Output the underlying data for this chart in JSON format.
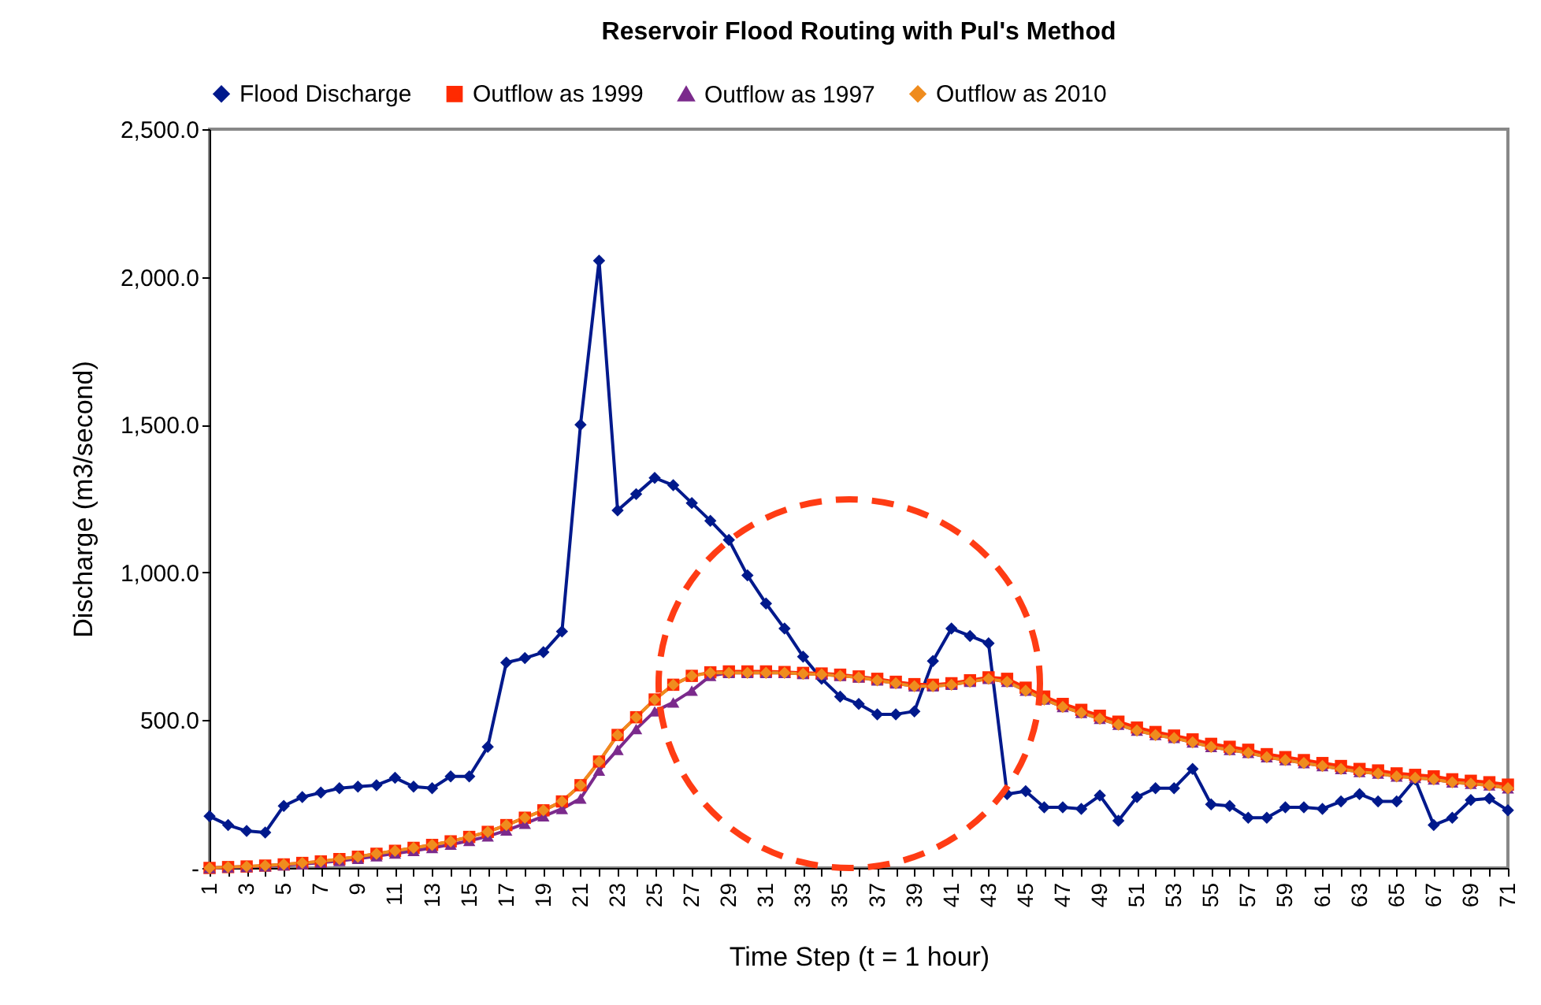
{
  "chart_data": {
    "type": "line",
    "title": "Reservoir Flood Routing with Pul's Method",
    "xlabel": "Time Step (t = 1 hour)",
    "ylabel": "Discharge (m3/second)",
    "categories": [
      "1",
      null,
      "3",
      null,
      "5",
      null,
      "7",
      null,
      "9",
      null,
      "11",
      null,
      "13",
      null,
      "15",
      null,
      "17",
      null,
      "19",
      null,
      "21",
      null,
      "23",
      null,
      "25",
      null,
      "27",
      null,
      "29",
      null,
      "31",
      null,
      "33",
      null,
      "35",
      null,
      "37",
      null,
      "39",
      null,
      "41",
      null,
      "43",
      null,
      "45",
      null,
      "47",
      null,
      "49",
      null,
      "51",
      null,
      "53",
      null,
      "55",
      null,
      "57",
      null,
      "59",
      null,
      "61",
      null,
      "63",
      null,
      "65",
      null,
      "67",
      null,
      "69",
      null,
      "71"
    ],
    "ylim": [
      0,
      2500
    ],
    "yticks": [
      {
        "value": 0,
        "label": "-"
      },
      {
        "value": 500,
        "label": "500.0"
      },
      {
        "value": 1000,
        "label": "1,000.0"
      },
      {
        "value": 1500,
        "label": "1,500.0"
      },
      {
        "value": 2000,
        "label": "2,000.0"
      },
      {
        "value": 2500,
        "label": "2,500.0"
      }
    ],
    "grid": false,
    "legend": "top",
    "line_style": "solid",
    "series": [
      {
        "name": "Flood Discharge",
        "color": "#00198c",
        "marker": "diamond",
        "values": [
          175,
          145,
          125,
          120,
          210,
          240,
          255,
          270,
          275,
          280,
          305,
          275,
          270,
          310,
          310,
          410,
          695,
          710,
          730,
          800,
          1500,
          2055,
          1210,
          1265,
          1320,
          1295,
          1235,
          1175,
          1110,
          990,
          895,
          810,
          715,
          640,
          580,
          555,
          520,
          520,
          530,
          700,
          810,
          785,
          760,
          250,
          260,
          205,
          205,
          200,
          245,
          160,
          240,
          270,
          270,
          335,
          215,
          210,
          170,
          170,
          205,
          205,
          200,
          225,
          250,
          225,
          225,
          300,
          145,
          170,
          230,
          235,
          195
        ]
      },
      {
        "name": "Outflow as 1999",
        "color": "#ff2a00",
        "marker": "square",
        "values": [
          0,
          3,
          5,
          8,
          12,
          17,
          22,
          30,
          38,
          48,
          58,
          68,
          78,
          90,
          105,
          122,
          145,
          170,
          195,
          225,
          280,
          360,
          450,
          510,
          570,
          620,
          650,
          662,
          665,
          665,
          665,
          663,
          660,
          658,
          654,
          648,
          640,
          630,
          622,
          620,
          625,
          635,
          645,
          640,
          610,
          580,
          555,
          535,
          515,
          495,
          475,
          460,
          448,
          435,
          420,
          410,
          400,
          385,
          375,
          365,
          355,
          345,
          335,
          330,
          320,
          315,
          310,
          300,
          295,
          290,
          282
        ]
      },
      {
        "name": "Outflow as 1997",
        "color": "#7b2a8c",
        "marker": "triangle",
        "values": [
          0,
          2,
          4,
          6,
          9,
          13,
          18,
          24,
          31,
          40,
          49,
          58,
          68,
          79,
          92,
          107,
          127,
          150,
          175,
          200,
          235,
          330,
          400,
          470,
          530,
          560,
          600,
          650,
          660,
          660,
          660,
          660,
          657,
          655,
          650,
          645,
          635,
          625,
          615,
          615,
          620,
          630,
          640,
          630,
          600,
          570,
          545,
          525,
          505,
          485,
          465,
          450,
          440,
          425,
          410,
          400,
          390,
          375,
          365,
          355,
          345,
          335,
          325,
          320,
          310,
          305,
          300,
          290,
          285,
          280,
          270
        ]
      },
      {
        "name": "Outflow as 2010",
        "color": "#ef8c1e",
        "marker": "diamond",
        "values": [
          0,
          3,
          5,
          8,
          12,
          17,
          22,
          30,
          38,
          48,
          58,
          68,
          78,
          90,
          105,
          122,
          145,
          170,
          195,
          225,
          280,
          360,
          450,
          510,
          570,
          620,
          650,
          660,
          660,
          660,
          660,
          660,
          657,
          655,
          650,
          645,
          635,
          625,
          615,
          615,
          620,
          630,
          640,
          630,
          600,
          570,
          545,
          525,
          505,
          485,
          465,
          450,
          440,
          425,
          410,
          400,
          390,
          375,
          365,
          355,
          345,
          335,
          325,
          320,
          310,
          305,
          300,
          290,
          285,
          280,
          270
        ]
      }
    ]
  }
}
